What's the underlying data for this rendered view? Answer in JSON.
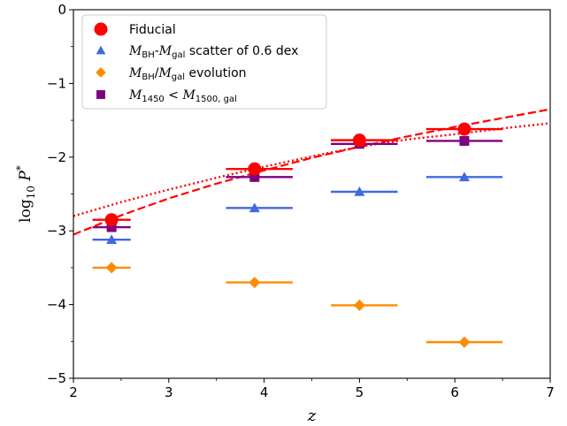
{
  "chart_data": {
    "type": "scatter",
    "title": "",
    "xlabel": "z",
    "ylabel": "log10 P*",
    "xlim": [
      2,
      7
    ],
    "ylim": [
      -5,
      0
    ],
    "xticks": [
      "2",
      "3",
      "4",
      "5",
      "6",
      "7"
    ],
    "yticks": [
      "−5",
      "−4",
      "−3",
      "−2",
      "−1",
      "0"
    ],
    "legend_position": "upper-left",
    "series": [
      {
        "name": "Fiducial",
        "marker": "circle",
        "color": "#ff0000",
        "points": [
          {
            "x": 2.4,
            "y": -2.85,
            "xlo": 2.2,
            "xhi": 2.6
          },
          {
            "x": 3.9,
            "y": -2.16,
            "xlo": 3.6,
            "xhi": 4.3
          },
          {
            "x": 5.0,
            "y": -1.77,
            "xlo": 4.7,
            "xhi": 5.4
          },
          {
            "x": 6.1,
            "y": -1.62,
            "xlo": 5.7,
            "xhi": 6.5
          }
        ]
      },
      {
        "name": "scatter of 0.6 dex",
        "marker": "triangle",
        "color": "#4169e1",
        "points": [
          {
            "x": 2.4,
            "y": -3.12,
            "xlo": 2.2,
            "xhi": 2.6
          },
          {
            "x": 3.9,
            "y": -2.69,
            "xlo": 3.6,
            "xhi": 4.3
          },
          {
            "x": 5.0,
            "y": -2.47,
            "xlo": 4.7,
            "xhi": 5.4
          },
          {
            "x": 6.1,
            "y": -2.27,
            "xlo": 5.7,
            "xhi": 6.5
          }
        ]
      },
      {
        "name": "evolution",
        "marker": "diamond",
        "color": "#ff8c00",
        "points": [
          {
            "x": 2.4,
            "y": -3.5,
            "xlo": 2.2,
            "xhi": 2.6
          },
          {
            "x": 3.9,
            "y": -3.7,
            "xlo": 3.6,
            "xhi": 4.3
          },
          {
            "x": 5.0,
            "y": -4.01,
            "xlo": 4.7,
            "xhi": 5.4
          },
          {
            "x": 6.1,
            "y": -4.51,
            "xlo": 5.7,
            "xhi": 6.5
          }
        ]
      },
      {
        "name": "",
        "marker": "square",
        "color": "#800080",
        "points": [
          {
            "x": 2.4,
            "y": -2.95,
            "xlo": 2.2,
            "xhi": 2.6
          },
          {
            "x": 3.9,
            "y": -2.27,
            "xlo": 3.6,
            "xhi": 4.3
          },
          {
            "x": 5.0,
            "y": -1.82,
            "xlo": 4.7,
            "xhi": 5.4
          },
          {
            "x": 6.1,
            "y": -1.78,
            "xlo": 5.7,
            "xhi": 6.5
          }
        ]
      }
    ],
    "lines": [
      {
        "style": "dashed",
        "color": "#ff0000",
        "x": [
          2.0,
          2.5,
          3.0,
          3.5,
          4.0,
          4.5,
          5.0,
          5.5,
          6.0,
          6.5,
          7.0
        ],
        "y": [
          -3.05,
          -2.79,
          -2.56,
          -2.36,
          -2.18,
          -2.01,
          -1.86,
          -1.72,
          -1.59,
          -1.47,
          -1.35
        ]
      },
      {
        "style": "dotted",
        "color": "#ff0000",
        "x": [
          2.0,
          2.5,
          3.0,
          3.5,
          4.0,
          4.5,
          5.0,
          5.5,
          6.0,
          6.5,
          7.0
        ],
        "y": [
          -2.8,
          -2.61,
          -2.44,
          -2.28,
          -2.13,
          -1.99,
          -1.86,
          -1.76,
          -1.69,
          -1.61,
          -1.54
        ]
      }
    ]
  }
}
